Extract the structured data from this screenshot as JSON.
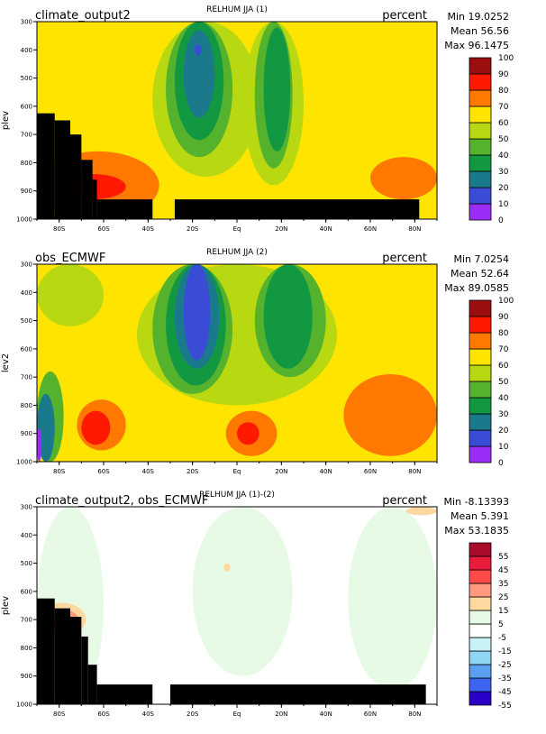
{
  "chart_data": [
    {
      "type": "heatmap",
      "title": "RELHUM JJA (1)",
      "left_label": "climate_output2",
      "units": "percent",
      "ylabel": "plev",
      "stats": [
        "Min 19.0252",
        "Mean 56.56",
        "Max 96.1475"
      ],
      "x_ticks": [
        "80S",
        "60S",
        "40S",
        "20S",
        "Eq",
        "20N",
        "40N",
        "60N",
        "80N"
      ],
      "x_tick_values": [
        -80,
        -60,
        -40,
        -20,
        0,
        20,
        40,
        60,
        80
      ],
      "xlim": [
        -90,
        90
      ],
      "y_ticks": [
        "300",
        "400",
        "500",
        "600",
        "700",
        "800",
        "900",
        "1000"
      ],
      "y_tick_values": [
        300,
        400,
        500,
        600,
        700,
        800,
        900,
        1000
      ],
      "ylim": [
        300,
        1000
      ],
      "levels": [
        "0",
        "10",
        "20",
        "30",
        "40",
        "50",
        "60",
        "70",
        "80",
        "90",
        "100"
      ],
      "colors": [
        "#9b2cf5",
        "#3a4cd6",
        "#1a7a8c",
        "#129840",
        "#55b22c",
        "#b8d812",
        "#ffe400",
        "#ff7800",
        "#ff1900",
        "#9c0d0d"
      ],
      "background": "#ffe400",
      "fields": [
        {
          "value_class": "50-60",
          "color": "#b8d812",
          "lat_range": [
            -38,
            10
          ],
          "plev_range": [
            300,
            850
          ]
        },
        {
          "value_class": "50-60",
          "color": "#b8d812",
          "lat_range": [
            3,
            30
          ],
          "plev_range": [
            300,
            880
          ]
        },
        {
          "value_class": "40-50",
          "color": "#55b22c",
          "lat_range": [
            -32,
            -2
          ],
          "plev_range": [
            300,
            780
          ]
        },
        {
          "value_class": "40-50",
          "color": "#55b22c",
          "lat_range": [
            8,
            25
          ],
          "plev_range": [
            300,
            820
          ]
        },
        {
          "value_class": "30-40",
          "color": "#129840",
          "lat_range": [
            -28,
            -6
          ],
          "plev_range": [
            300,
            720
          ]
        },
        {
          "value_class": "30-40",
          "color": "#129840",
          "lat_range": [
            12,
            24
          ],
          "plev_range": [
            320,
            760
          ]
        },
        {
          "value_class": "20-30",
          "color": "#1a7a8c",
          "lat_range": [
            -24,
            -10
          ],
          "plev_range": [
            330,
            640
          ]
        },
        {
          "value_class": "10-20",
          "color": "#3a4cd6",
          "lat_range": [
            -19,
            -16
          ],
          "plev_range": [
            380,
            420
          ]
        },
        {
          "value_class": "70-80",
          "color": "#ff7800",
          "lat_range": [
            -90,
            -35
          ],
          "plev_range": [
            760,
            1000
          ]
        },
        {
          "value_class": "80-90",
          "color": "#ff1900",
          "lat_range": [
            -80,
            -50
          ],
          "plev_range": [
            840,
            930
          ]
        },
        {
          "value_class": "70-80",
          "color": "#ff7800",
          "lat_range": [
            60,
            90
          ],
          "plev_range": [
            780,
            930
          ]
        }
      ],
      "masks": [
        {
          "lat_range": [
            -90,
            -82
          ],
          "plev_range": [
            625,
            1000
          ]
        },
        {
          "lat_range": [
            -82,
            -75
          ],
          "plev_range": [
            650,
            1000
          ]
        },
        {
          "lat_range": [
            -75,
            -70
          ],
          "plev_range": [
            700,
            1000
          ]
        },
        {
          "lat_range": [
            -70,
            -65
          ],
          "plev_range": [
            790,
            1000
          ]
        },
        {
          "lat_range": [
            -65,
            -63
          ],
          "plev_range": [
            860,
            1000
          ]
        },
        {
          "lat_range": [
            -63,
            -38
          ],
          "plev_range": [
            930,
            1000
          ]
        },
        {
          "lat_range": [
            -28,
            82
          ],
          "plev_range": [
            930,
            1000
          ]
        }
      ]
    },
    {
      "type": "heatmap",
      "title": "RELHUM JJA (2)",
      "left_label": "obs_ECMWF",
      "units": "percent",
      "ylabel": "lev2",
      "stats": [
        "Min 7.0254",
        "Mean 52.64",
        "Max 89.0585"
      ],
      "x_ticks": [
        "80S",
        "60S",
        "40S",
        "20S",
        "Eq",
        "20N",
        "40N",
        "60N",
        "80N"
      ],
      "x_tick_values": [
        -80,
        -60,
        -40,
        -20,
        0,
        20,
        40,
        60,
        80
      ],
      "xlim": [
        -90,
        90
      ],
      "y_ticks": [
        "300",
        "400",
        "500",
        "600",
        "700",
        "800",
        "900",
        "1000"
      ],
      "y_tick_values": [
        300,
        400,
        500,
        600,
        700,
        800,
        900,
        1000
      ],
      "ylim": [
        300,
        1000
      ],
      "levels": [
        "0",
        "10",
        "20",
        "30",
        "40",
        "50",
        "60",
        "70",
        "80",
        "90",
        "100"
      ],
      "colors": [
        "#9b2cf5",
        "#3a4cd6",
        "#1a7a8c",
        "#129840",
        "#55b22c",
        "#b8d812",
        "#ffe400",
        "#ff7800",
        "#ff1900",
        "#9c0d0d"
      ],
      "background": "#ffe400",
      "fields": [
        {
          "value_class": "50-60",
          "color": "#b8d812",
          "lat_range": [
            -45,
            45
          ],
          "plev_range": [
            300,
            800
          ]
        },
        {
          "value_class": "50-60",
          "color": "#b8d812",
          "lat_range": [
            -90,
            -60
          ],
          "plev_range": [
            300,
            520
          ]
        },
        {
          "value_class": "40-50",
          "color": "#55b22c",
          "lat_range": [
            -38,
            -2
          ],
          "plev_range": [
            300,
            760
          ]
        },
        {
          "value_class": "40-50",
          "color": "#55b22c",
          "lat_range": [
            8,
            40
          ],
          "plev_range": [
            300,
            700
          ]
        },
        {
          "value_class": "30-40",
          "color": "#129840",
          "lat_range": [
            -32,
            -5
          ],
          "plev_range": [
            300,
            730
          ]
        },
        {
          "value_class": "30-40",
          "color": "#129840",
          "lat_range": [
            12,
            34
          ],
          "plev_range": [
            300,
            670
          ]
        },
        {
          "value_class": "20-30",
          "color": "#1a7a8c",
          "lat_range": [
            -28,
            -8
          ],
          "plev_range": [
            300,
            670
          ]
        },
        {
          "value_class": "10-20",
          "color": "#3a4cd6",
          "lat_range": [
            -24,
            -12
          ],
          "plev_range": [
            300,
            640
          ]
        },
        {
          "value_class": "40-50",
          "color": "#55b22c",
          "lat_range": [
            -90,
            -78
          ],
          "plev_range": [
            680,
            1000
          ]
        },
        {
          "value_class": "20-30",
          "color": "#1a7a8c",
          "lat_range": [
            -90,
            -82
          ],
          "plev_range": [
            760,
            1000
          ]
        },
        {
          "value_class": "0-10",
          "color": "#9b2cf5",
          "lat_range": [
            -90,
            -88
          ],
          "plev_range": [
            880,
            1000
          ]
        },
        {
          "value_class": "70-80",
          "color": "#ff7800",
          "lat_range": [
            -72,
            -50
          ],
          "plev_range": [
            780,
            960
          ]
        },
        {
          "value_class": "80-90",
          "color": "#ff1900",
          "lat_range": [
            -70,
            -57
          ],
          "plev_range": [
            820,
            940
          ]
        },
        {
          "value_class": "70-80",
          "color": "#ff7800",
          "lat_range": [
            -5,
            18
          ],
          "plev_range": [
            820,
            980
          ]
        },
        {
          "value_class": "80-90",
          "color": "#ff1900",
          "lat_range": [
            0,
            10
          ],
          "plev_range": [
            860,
            940
          ]
        },
        {
          "value_class": "70-80",
          "color": "#ff7800",
          "lat_range": [
            48,
            90
          ],
          "plev_range": [
            690,
            980
          ]
        }
      ],
      "masks": []
    },
    {
      "type": "heatmap",
      "title": "RELHUM JJA (1)-(2)",
      "left_label": "climate_output2, obs_ECMWF",
      "units": "percent",
      "ylabel": "plev",
      "stats": [
        "Min -8.13393",
        "Mean 5.391",
        "Max 53.1835"
      ],
      "x_ticks": [
        "80S",
        "60S",
        "40S",
        "20S",
        "Eq",
        "20N",
        "40N",
        "60N",
        "80N"
      ],
      "x_tick_values": [
        -80,
        -60,
        -40,
        -20,
        0,
        20,
        40,
        60,
        80
      ],
      "xlim": [
        -90,
        90
      ],
      "y_ticks": [
        "300",
        "400",
        "500",
        "600",
        "700",
        "800",
        "900",
        "1000"
      ],
      "y_tick_values": [
        300,
        400,
        500,
        600,
        700,
        800,
        900,
        1000
      ],
      "ylim": [
        300,
        1000
      ],
      "levels": [
        "-55",
        "-45",
        "-35",
        "-25",
        "-15",
        "-5",
        "5",
        "15",
        "25",
        "35",
        "45",
        "55"
      ],
      "colors": [
        "#2a00c8",
        "#3c64f0",
        "#5aa0ee",
        "#8ed6f2",
        "#c8f2f5",
        "#ffffff",
        "#e6fae6",
        "#ffd8a0",
        "#ff9a80",
        "#ff4a4a",
        "#e81c3a",
        "#a80c2a"
      ],
      "background": "#ffffff",
      "fields": [
        {
          "value_class": "5-15",
          "color": "#e6fae6",
          "lat_range": [
            -90,
            -60
          ],
          "plev_range": [
            300,
            1000
          ]
        },
        {
          "value_class": "5-15",
          "color": "#e6fae6",
          "lat_range": [
            -20,
            25
          ],
          "plev_range": [
            300,
            900
          ]
        },
        {
          "value_class": "5-15",
          "color": "#e6fae6",
          "lat_range": [
            50,
            90
          ],
          "plev_range": [
            300,
            950
          ]
        },
        {
          "value_class": "15-25",
          "color": "#ffd8a0",
          "lat_range": [
            -6,
            -3
          ],
          "plev_range": [
            500,
            530
          ]
        },
        {
          "value_class": "15-25",
          "color": "#ffd8a0",
          "lat_range": [
            -90,
            -68
          ],
          "plev_range": [
            640,
            760
          ]
        },
        {
          "value_class": "25-35",
          "color": "#ff9a80",
          "lat_range": [
            -90,
            -71
          ],
          "plev_range": [
            660,
            750
          ]
        },
        {
          "value_class": "35-45",
          "color": "#ff4a4a",
          "lat_range": [
            -90,
            -74
          ],
          "plev_range": [
            680,
            740
          ]
        },
        {
          "value_class": "15-25",
          "color": "#ffd8a0",
          "lat_range": [
            76,
            90
          ],
          "plev_range": [
            300,
            330
          ]
        }
      ],
      "masks": [
        {
          "lat_range": [
            -90,
            -82
          ],
          "plev_range": [
            625,
            1000
          ]
        },
        {
          "lat_range": [
            -82,
            -75
          ],
          "plev_range": [
            660,
            1000
          ]
        },
        {
          "lat_range": [
            -75,
            -70
          ],
          "plev_range": [
            690,
            1000
          ]
        },
        {
          "lat_range": [
            -70,
            -67
          ],
          "plev_range": [
            760,
            1000
          ]
        },
        {
          "lat_range": [
            -67,
            -63
          ],
          "plev_range": [
            860,
            1000
          ]
        },
        {
          "lat_range": [
            -63,
            -38
          ],
          "plev_range": [
            930,
            1000
          ]
        },
        {
          "lat_range": [
            -30,
            85
          ],
          "plev_range": [
            930,
            1000
          ]
        }
      ]
    }
  ]
}
